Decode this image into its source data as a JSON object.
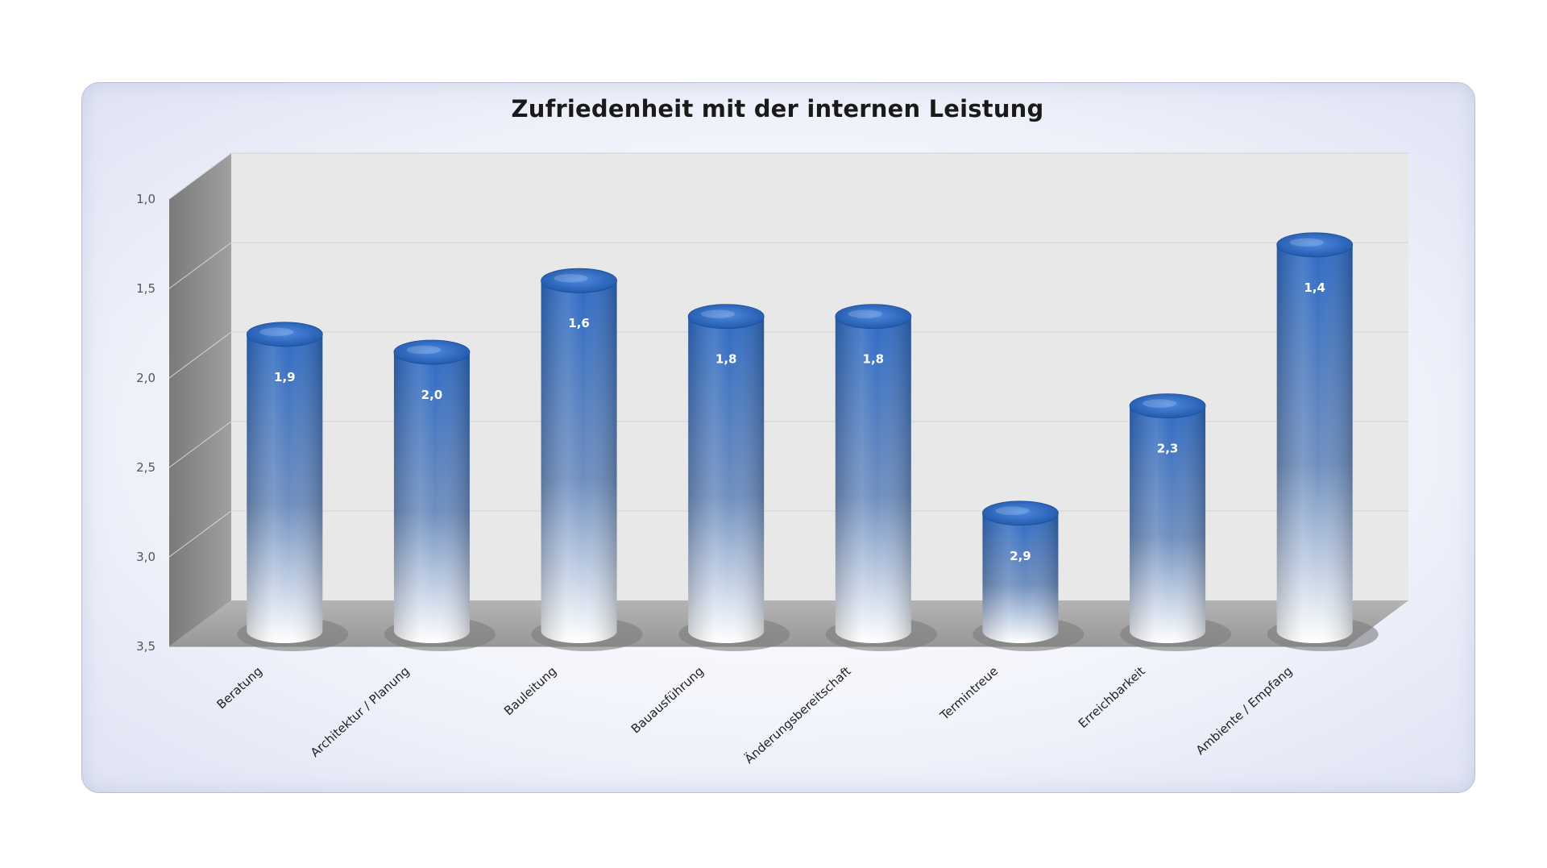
{
  "chart_data": {
    "type": "bar",
    "title": "Zufriedenheit mit der internen Leistung",
    "categories": [
      "Beratung",
      "Architektur / Planung",
      "Bauleitung",
      "Bauausführung",
      "Änderungsbereitschaft",
      "Termintreue",
      "Erreichbarkeit",
      "Ambiente / Empfang"
    ],
    "values": [
      1.9,
      2.0,
      1.6,
      1.8,
      1.8,
      2.9,
      2.3,
      1.4
    ],
    "value_labels": [
      "1,9",
      "2,0",
      "1,6",
      "1,8",
      "1,8",
      "2,9",
      "2,3",
      "1,4"
    ],
    "yticks": [
      "1,0",
      "1,5",
      "2,0",
      "2,5",
      "3,0",
      "3,5"
    ],
    "ylim": [
      1.0,
      3.5
    ],
    "y_reversed": true,
    "xlabel": "",
    "ylabel": "",
    "grid": true,
    "style": "3d-cylinder",
    "colors": {
      "bar_top": "#2f6bc4",
      "bar_bottom": "#ffffff",
      "back_wall": "#e6e6e6",
      "side_wall": "#8c8c8c",
      "floor": "#a6a6a6"
    }
  }
}
